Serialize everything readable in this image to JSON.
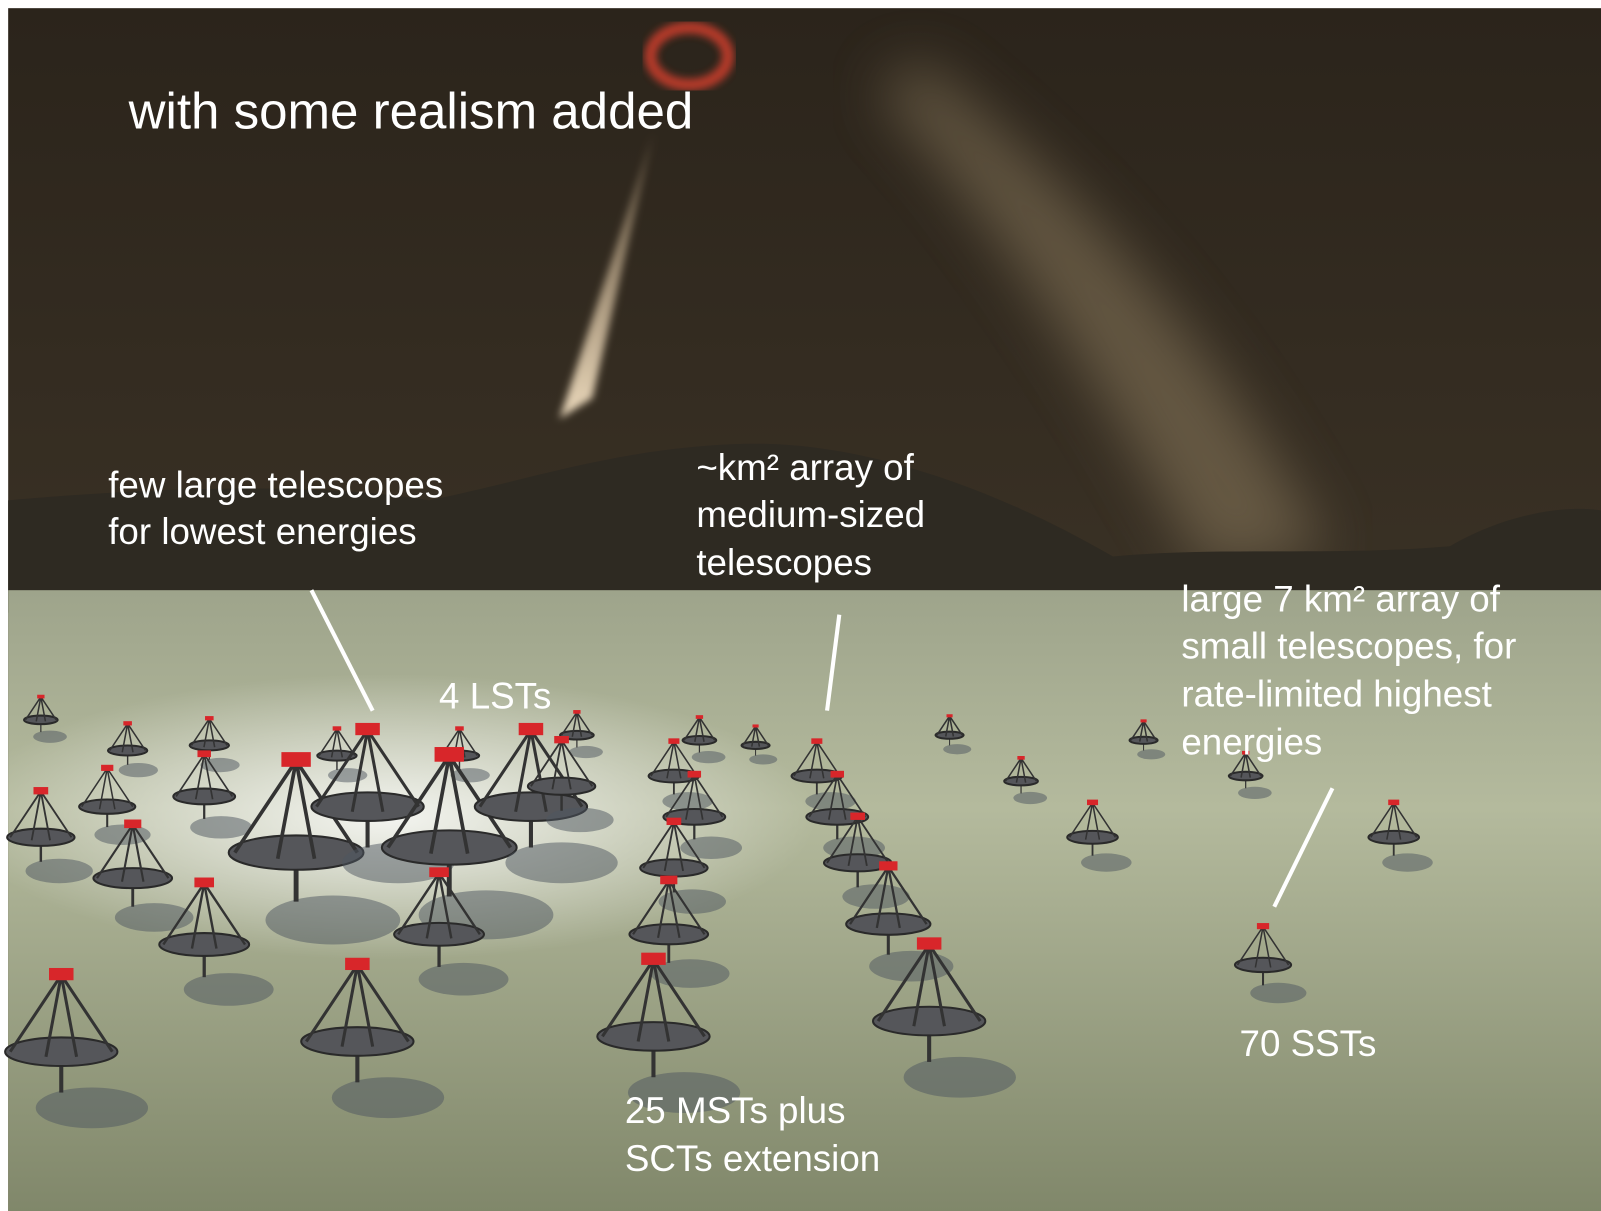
{
  "title": "with some realism added",
  "annotations": {
    "large": {
      "lines": [
        "few large telescopes",
        "for lowest energies"
      ],
      "count": "4 LSTs"
    },
    "medium": {
      "lines": [
        "~km² array of",
        "medium-sized",
        "telescopes"
      ],
      "count": [
        "25 MSTs plus",
        "SCTs extension"
      ]
    },
    "small": {
      "lines": [
        "large 7 km² array of",
        "small telescopes, for",
        "rate-limited highest",
        "energies"
      ],
      "count": "70 SSTs"
    }
  }
}
